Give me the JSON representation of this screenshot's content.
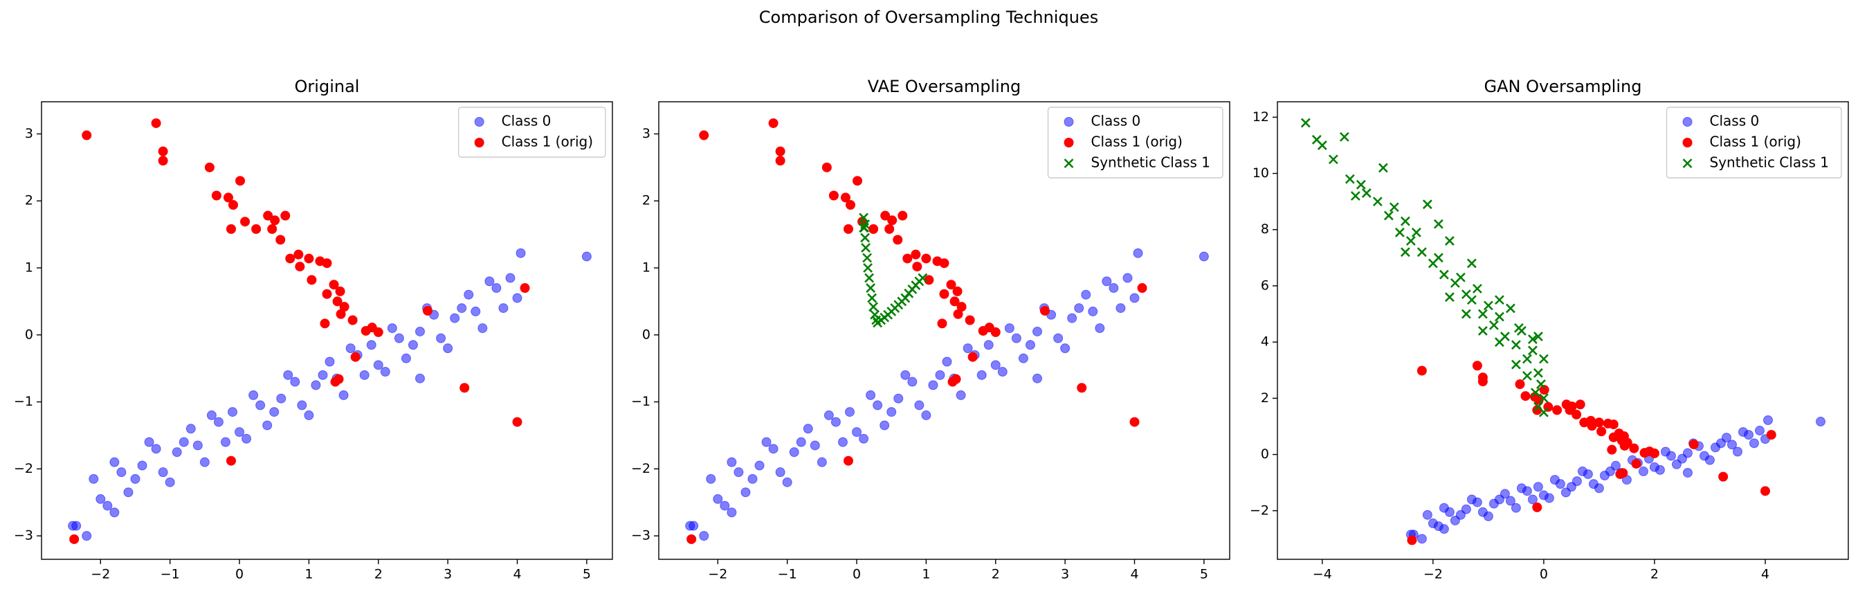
{
  "title": "Comparison of Oversampling Techniques",
  "chart_data": [
    {
      "type": "scatter",
      "title": "Original",
      "legend": "upper right",
      "xlim": [
        -2.85,
        5.37
      ],
      "ylim": [
        -3.35,
        3.48
      ],
      "xticks": [
        {
          "value": -2,
          "label": "−2"
        },
        {
          "value": -1,
          "label": "−1"
        },
        0,
        1,
        2,
        3,
        4,
        5
      ],
      "yticks": [
        {
          "value": -3,
          "label": "−3"
        },
        {
          "value": -2,
          "label": "−2"
        },
        {
          "value": -1,
          "label": "−1"
        },
        0,
        1,
        2,
        3
      ],
      "series": [
        {
          "name": "Class 0",
          "color": "blue",
          "marker": "o",
          "alpha": 0.5,
          "x": [
            -2.1,
            -1.9,
            -1.7,
            -1.5,
            -1.3,
            -1.1,
            -0.9,
            -0.7,
            -0.5,
            -0.3,
            -0.1,
            0.1,
            0.3,
            0.5,
            0.7,
            0.9,
            1.1,
            1.3,
            1.5,
            1.7,
            1.9,
            2.1,
            2.3,
            2.5,
            2.7,
            2.9,
            3.1,
            3.3,
            3.5,
            3.7,
            3.9,
            -2.0,
            -1.8,
            -1.6,
            -1.4,
            -1.2,
            -1.0,
            -0.8,
            -0.6,
            -0.4,
            -0.2,
            0.0,
            0.2,
            0.4,
            0.6,
            0.8,
            1.0,
            1.2,
            1.4,
            1.6,
            1.8,
            2.0,
            2.2,
            2.4,
            2.6,
            2.8,
            3.0,
            3.2,
            3.4,
            3.6,
            3.8,
            4.0,
            5.0,
            4.05,
            -2.4,
            -2.35,
            -2.2,
            -1.8,
            2.6
          ],
          "values": [
            -2.15,
            -2.55,
            -2.05,
            -2.15,
            -1.6,
            -2.05,
            -1.75,
            -1.4,
            -1.9,
            -1.3,
            -1.15,
            -1.55,
            -1.05,
            -1.15,
            -0.6,
            -1.05,
            -0.75,
            -0.4,
            -0.9,
            -0.3,
            -0.15,
            -0.55,
            -0.05,
            -0.15,
            0.4,
            -0.05,
            0.25,
            0.6,
            0.1,
            0.7,
            0.85,
            -2.45,
            -1.9,
            -2.35,
            -1.95,
            -1.7,
            -2.2,
            -1.6,
            -1.65,
            -1.2,
            -1.6,
            -1.45,
            -0.9,
            -1.35,
            -0.95,
            -0.7,
            -1.2,
            -0.6,
            -0.65,
            -0.2,
            -0.6,
            -0.45,
            0.1,
            -0.35,
            0.05,
            0.3,
            -0.2,
            0.4,
            0.35,
            0.8,
            0.4,
            0.55,
            1.17,
            1.22,
            -2.85,
            -2.85,
            -3.0,
            -2.65,
            -0.65
          ]
        },
        {
          "name": "Class 1 (orig)",
          "color": "red",
          "marker": "o",
          "alpha": 1,
          "x": [
            -2.2,
            -1.2,
            -1.1,
            -1.1,
            -0.43,
            -0.33,
            -0.16,
            0.01,
            -0.09,
            -0.12,
            0.08,
            0.24,
            0.41,
            0.51,
            0.66,
            0.47,
            0.59,
            0.73,
            0.85,
            1.0,
            0.87,
            1.04,
            1.16,
            1.26,
            1.36,
            1.26,
            1.45,
            1.41,
            1.51,
            1.46,
            1.23,
            1.63,
            1.82,
            1.91,
            2.0,
            2.71,
            4.11,
            3.24,
            4.0,
            1.67,
            1.38,
            1.43,
            -0.12,
            -2.38
          ],
          "values": [
            2.98,
            3.16,
            2.74,
            2.6,
            2.5,
            2.08,
            2.05,
            2.3,
            1.94,
            1.58,
            1.69,
            1.58,
            1.78,
            1.71,
            1.78,
            1.58,
            1.42,
            1.14,
            1.2,
            1.14,
            1.02,
            0.82,
            1.1,
            1.07,
            0.75,
            0.61,
            0.65,
            0.5,
            0.42,
            0.31,
            0.17,
            0.22,
            0.06,
            0.11,
            0.04,
            0.36,
            0.7,
            -0.79,
            -1.3,
            -0.33,
            -0.7,
            -0.66,
            -1.88,
            -3.05
          ]
        }
      ]
    },
    {
      "type": "scatter",
      "title": "VAE Oversampling",
      "legend": "upper right",
      "xlim": [
        -2.85,
        5.37
      ],
      "ylim": [
        -3.35,
        3.48
      ],
      "xticks": [
        {
          "value": -2,
          "label": "−2"
        },
        {
          "value": -1,
          "label": "−1"
        },
        0,
        1,
        2,
        3,
        4,
        5
      ],
      "yticks": [
        {
          "value": -3,
          "label": "−3"
        },
        {
          "value": -2,
          "label": "−2"
        },
        {
          "value": -1,
          "label": "−1"
        },
        0,
        1,
        2,
        3
      ],
      "series": [
        {
          "name": "Class 0",
          "color": "blue",
          "marker": "o",
          "alpha": 0.5,
          "x": [
            -2.1,
            -1.9,
            -1.7,
            -1.5,
            -1.3,
            -1.1,
            -0.9,
            -0.7,
            -0.5,
            -0.3,
            -0.1,
            0.1,
            0.3,
            0.5,
            0.7,
            0.9,
            1.1,
            1.3,
            1.5,
            1.7,
            1.9,
            2.1,
            2.3,
            2.5,
            2.7,
            2.9,
            3.1,
            3.3,
            3.5,
            3.7,
            3.9,
            -2.0,
            -1.8,
            -1.6,
            -1.4,
            -1.2,
            -1.0,
            -0.8,
            -0.6,
            -0.4,
            -0.2,
            0.0,
            0.2,
            0.4,
            0.6,
            0.8,
            1.0,
            1.2,
            1.4,
            1.6,
            1.8,
            2.0,
            2.2,
            2.4,
            2.6,
            2.8,
            3.0,
            3.2,
            3.4,
            3.6,
            3.8,
            4.0,
            5.0,
            4.05,
            -2.4,
            -2.35,
            -2.2,
            -1.8,
            2.6
          ],
          "values": [
            -2.15,
            -2.55,
            -2.05,
            -2.15,
            -1.6,
            -2.05,
            -1.75,
            -1.4,
            -1.9,
            -1.3,
            -1.15,
            -1.55,
            -1.05,
            -1.15,
            -0.6,
            -1.05,
            -0.75,
            -0.4,
            -0.9,
            -0.3,
            -0.15,
            -0.55,
            -0.05,
            -0.15,
            0.4,
            -0.05,
            0.25,
            0.6,
            0.1,
            0.7,
            0.85,
            -2.45,
            -1.9,
            -2.35,
            -1.95,
            -1.7,
            -2.2,
            -1.6,
            -1.65,
            -1.2,
            -1.6,
            -1.45,
            -0.9,
            -1.35,
            -0.95,
            -0.7,
            -1.2,
            -0.6,
            -0.65,
            -0.2,
            -0.6,
            -0.45,
            0.1,
            -0.35,
            0.05,
            0.3,
            -0.2,
            0.4,
            0.35,
            0.8,
            0.4,
            0.55,
            1.17,
            1.22,
            -2.85,
            -2.85,
            -3.0,
            -2.65,
            -0.65
          ]
        },
        {
          "name": "Class 1 (orig)",
          "color": "red",
          "marker": "o",
          "alpha": 1,
          "x": [
            -2.2,
            -1.2,
            -1.1,
            -1.1,
            -0.43,
            -0.33,
            -0.16,
            0.01,
            -0.09,
            -0.12,
            0.08,
            0.24,
            0.41,
            0.51,
            0.66,
            0.47,
            0.59,
            0.73,
            0.85,
            1.0,
            0.87,
            1.04,
            1.16,
            1.26,
            1.36,
            1.26,
            1.45,
            1.41,
            1.51,
            1.46,
            1.23,
            1.63,
            1.82,
            1.91,
            2.0,
            2.71,
            4.11,
            3.24,
            4.0,
            1.67,
            1.38,
            1.43,
            -0.12,
            -2.38
          ],
          "values": [
            2.98,
            3.16,
            2.74,
            2.6,
            2.5,
            2.08,
            2.05,
            2.3,
            1.94,
            1.58,
            1.69,
            1.58,
            1.78,
            1.71,
            1.78,
            1.58,
            1.42,
            1.14,
            1.2,
            1.14,
            1.02,
            0.82,
            1.1,
            1.07,
            0.75,
            0.61,
            0.65,
            0.5,
            0.42,
            0.31,
            0.17,
            0.22,
            0.06,
            0.11,
            0.04,
            0.36,
            0.7,
            -0.79,
            -1.3,
            -0.33,
            -0.7,
            -0.66,
            -1.88,
            -3.05
          ]
        },
        {
          "name": "Synthetic Class 1",
          "color": "green",
          "marker": "x",
          "alpha": 1,
          "x": [
            0.1,
            0.11,
            0.12,
            0.13,
            0.15,
            0.16,
            0.18,
            0.2,
            0.22,
            0.24,
            0.26,
            0.28,
            0.3,
            0.35,
            0.4,
            0.45,
            0.5,
            0.55,
            0.6,
            0.65,
            0.7,
            0.75,
            0.8,
            0.85,
            0.9,
            0.95,
            0.1,
            0.12
          ],
          "values": [
            1.75,
            1.6,
            1.45,
            1.3,
            1.15,
            1.0,
            0.85,
            0.7,
            0.55,
            0.42,
            0.3,
            0.22,
            0.18,
            0.22,
            0.26,
            0.3,
            0.35,
            0.4,
            0.45,
            0.5,
            0.55,
            0.62,
            0.68,
            0.74,
            0.8,
            0.85,
            1.6,
            1.65
          ]
        }
      ]
    },
    {
      "type": "scatter",
      "title": "GAN Oversampling",
      "legend": "upper right",
      "xlim": [
        -4.81,
        5.5
      ],
      "ylim": [
        -3.73,
        12.55
      ],
      "xticks": [
        {
          "value": -4,
          "label": "−4"
        },
        {
          "value": -2,
          "label": "−2"
        },
        0,
        2,
        4
      ],
      "yticks": [
        {
          "value": -2,
          "label": "−2"
        },
        0,
        2,
        4,
        6,
        8,
        10,
        12
      ],
      "series": [
        {
          "name": "Class 0",
          "color": "blue",
          "marker": "o",
          "alpha": 0.5,
          "x": [
            -2.1,
            -1.9,
            -1.7,
            -1.5,
            -1.3,
            -1.1,
            -0.9,
            -0.7,
            -0.5,
            -0.3,
            -0.1,
            0.1,
            0.3,
            0.5,
            0.7,
            0.9,
            1.1,
            1.3,
            1.5,
            1.7,
            1.9,
            2.1,
            2.3,
            2.5,
            2.7,
            2.9,
            3.1,
            3.3,
            3.5,
            3.7,
            3.9,
            -2.0,
            -1.8,
            -1.6,
            -1.4,
            -1.2,
            -1.0,
            -0.8,
            -0.6,
            -0.4,
            -0.2,
            0.0,
            0.2,
            0.4,
            0.6,
            0.8,
            1.0,
            1.2,
            1.4,
            1.6,
            1.8,
            2.0,
            2.2,
            2.4,
            2.6,
            2.8,
            3.0,
            3.2,
            3.4,
            3.6,
            3.8,
            4.0,
            5.0,
            4.05,
            -2.4,
            -2.35,
            -2.2,
            -1.8,
            2.6
          ],
          "values": [
            -2.15,
            -2.55,
            -2.05,
            -2.15,
            -1.6,
            -2.05,
            -1.75,
            -1.4,
            -1.9,
            -1.3,
            -1.15,
            -1.55,
            -1.05,
            -1.15,
            -0.6,
            -1.05,
            -0.75,
            -0.4,
            -0.9,
            -0.3,
            -0.15,
            -0.55,
            -0.05,
            -0.15,
            0.4,
            -0.05,
            0.25,
            0.6,
            0.1,
            0.7,
            0.85,
            -2.45,
            -1.9,
            -2.35,
            -1.95,
            -1.7,
            -2.2,
            -1.6,
            -1.65,
            -1.2,
            -1.6,
            -1.45,
            -0.9,
            -1.35,
            -0.95,
            -0.7,
            -1.2,
            -0.6,
            -0.65,
            -0.2,
            -0.6,
            -0.45,
            0.1,
            -0.35,
            0.05,
            0.3,
            -0.2,
            0.4,
            0.35,
            0.8,
            0.4,
            0.55,
            1.17,
            1.22,
            -2.85,
            -2.85,
            -3.0,
            -2.65,
            -0.65
          ]
        },
        {
          "name": "Class 1 (orig)",
          "color": "red",
          "marker": "o",
          "alpha": 1,
          "x": [
            -2.2,
            -1.2,
            -1.1,
            -1.1,
            -0.43,
            -0.33,
            -0.16,
            0.01,
            -0.09,
            -0.12,
            0.08,
            0.24,
            0.41,
            0.51,
            0.66,
            0.47,
            0.59,
            0.73,
            0.85,
            1.0,
            0.87,
            1.04,
            1.16,
            1.26,
            1.36,
            1.26,
            1.45,
            1.41,
            1.51,
            1.46,
            1.23,
            1.63,
            1.82,
            1.91,
            2.0,
            2.71,
            4.11,
            3.24,
            4.0,
            1.67,
            1.38,
            1.43,
            -0.12,
            -2.38
          ],
          "values": [
            2.98,
            3.16,
            2.74,
            2.6,
            2.5,
            2.08,
            2.05,
            2.3,
            1.94,
            1.58,
            1.69,
            1.58,
            1.78,
            1.71,
            1.78,
            1.58,
            1.42,
            1.14,
            1.2,
            1.14,
            1.02,
            0.82,
            1.1,
            1.07,
            0.75,
            0.61,
            0.65,
            0.5,
            0.42,
            0.31,
            0.17,
            0.22,
            0.06,
            0.11,
            0.04,
            0.36,
            0.7,
            -0.79,
            -1.3,
            -0.33,
            -0.7,
            -0.66,
            -1.88,
            -3.05
          ]
        },
        {
          "name": "Synthetic Class 1",
          "color": "green",
          "marker": "x",
          "alpha": 1,
          "x": [
            -4.3,
            -4.1,
            -4.0,
            -3.8,
            -3.6,
            -3.5,
            -3.4,
            -3.3,
            -3.2,
            -3.0,
            -2.9,
            -2.8,
            -2.7,
            -2.6,
            -2.5,
            -2.4,
            -2.3,
            -2.2,
            -2.1,
            -2.0,
            -1.9,
            -1.8,
            -1.7,
            -1.6,
            -1.5,
            -1.4,
            -1.3,
            -1.2,
            -1.1,
            -1.0,
            -0.9,
            -0.8,
            -0.7,
            -0.6,
            -0.5,
            -0.4,
            -0.3,
            -0.2,
            -0.1,
            0.0,
            -0.05,
            0.0,
            -0.15,
            -0.1,
            0.0,
            -0.3,
            -0.5,
            -0.8,
            -1.1,
            -1.4,
            -1.7,
            -0.2,
            -0.45,
            -0.1,
            -1.9,
            -1.3,
            -0.8,
            -2.5
          ],
          "values": [
            11.8,
            11.2,
            11.0,
            10.5,
            11.3,
            9.8,
            9.2,
            9.6,
            9.3,
            9.0,
            10.2,
            8.5,
            8.8,
            7.9,
            8.3,
            7.6,
            7.9,
            7.2,
            8.9,
            6.8,
            7.0,
            6.4,
            7.6,
            6.1,
            6.3,
            5.7,
            5.5,
            5.9,
            5.0,
            5.3,
            4.6,
            4.9,
            4.2,
            5.2,
            3.9,
            4.4,
            3.4,
            3.7,
            2.9,
            3.4,
            2.5,
            2.0,
            2.2,
            1.7,
            1.5,
            2.8,
            3.2,
            4.0,
            4.4,
            5.0,
            5.6,
            4.1,
            4.5,
            4.2,
            8.2,
            6.8,
            5.5,
            7.2
          ]
        }
      ]
    }
  ]
}
